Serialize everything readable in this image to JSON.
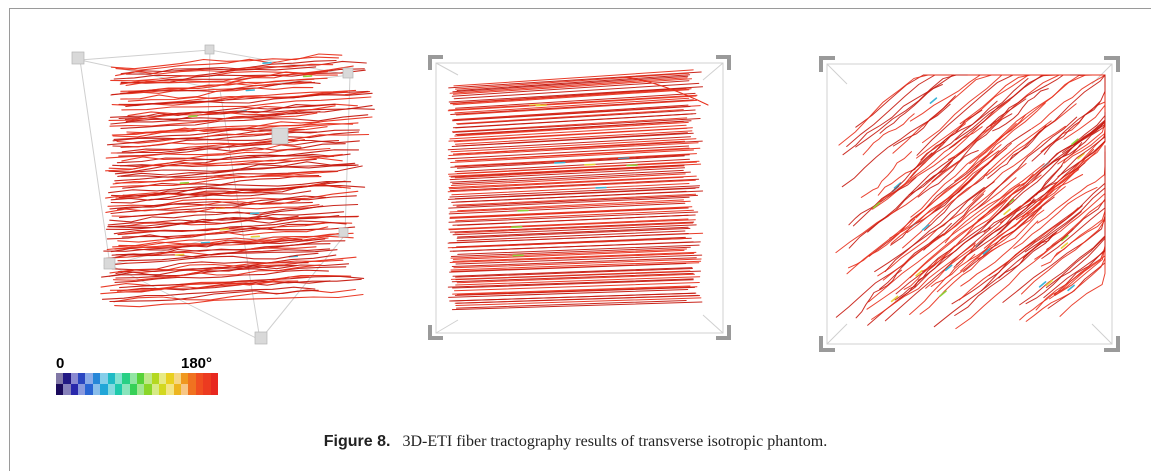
{
  "figure": {
    "label": "Figure 8.",
    "caption": "3D-ETI fiber tractography results of transverse isotropic phantom."
  },
  "colorbar": {
    "min_label": "0",
    "max_label": "180°",
    "stops": [
      "#1a0a5c",
      "#2a2ab0",
      "#2a6cd8",
      "#1fb0d8",
      "#1fd0a0",
      "#3ed040",
      "#a8d820",
      "#e8d820",
      "#f0a020",
      "#f05020",
      "#e82820"
    ]
  },
  "colors": {
    "fiber_main": "#e8301c",
    "fiber_dark": "#c61a10",
    "fiber_accent_green": "#8fd23a",
    "fiber_accent_yellow": "#e6d23c",
    "fiber_accent_cyan": "#3cb4d6",
    "box_edge": "#c8c8c8",
    "corner_marker": "#d8d8d8"
  },
  "panels": [
    {
      "id": "left",
      "view": "oblique",
      "fiber_direction": "horizontal",
      "fiber_style": "wavy"
    },
    {
      "id": "middle",
      "view": "front",
      "fiber_direction": "horizontal",
      "fiber_style": "straight"
    },
    {
      "id": "right",
      "view": "front",
      "fiber_direction": "diagonal",
      "fiber_style": "wavy"
    }
  ]
}
